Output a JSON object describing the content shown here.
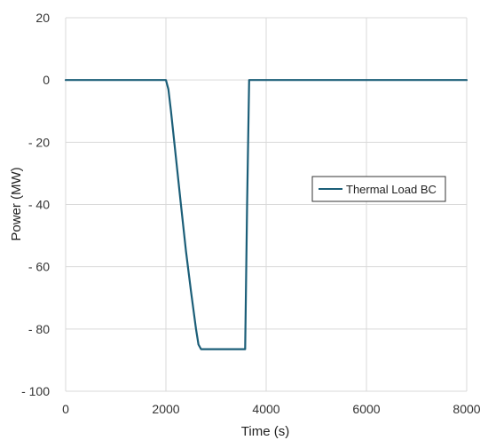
{
  "chart_data": {
    "type": "line",
    "title": "",
    "xlabel": "Time (s)",
    "ylabel": "Power (MW)",
    "xlim": [
      0,
      8000
    ],
    "ylim": [
      -100,
      20
    ],
    "x_ticks": [
      0,
      2000,
      4000,
      6000,
      8000
    ],
    "x_tick_labels": [
      "0",
      "2000",
      "4000",
      "6000",
      "8000"
    ],
    "y_ticks": [
      20,
      0,
      -20,
      -40,
      -60,
      -80,
      -100
    ],
    "y_tick_labels": [
      "20",
      "0",
      "- 20",
      "- 40",
      "- 60",
      "- 80",
      "- 100"
    ],
    "grid": {
      "horizontal": true,
      "vertical": true
    },
    "legend_position": "right-middle",
    "series": [
      {
        "name": "Thermal Load BC",
        "color": "#1b5e78",
        "x": [
          0,
          1950,
          2000,
          2050,
          2100,
          2200,
          2300,
          2400,
          2500,
          2600,
          2650,
          2700,
          2750,
          2800,
          3000,
          3200,
          3400,
          3550,
          3580,
          3620,
          3660,
          3700,
          4000,
          6000,
          8000
        ],
        "y": [
          0,
          0,
          0,
          -3,
          -10,
          -25,
          -40,
          -55,
          -68,
          -80,
          -85,
          -86.5,
          -86.5,
          -86.5,
          -86.5,
          -86.5,
          -86.5,
          -86.5,
          -86.5,
          -40,
          0,
          0,
          0,
          0,
          0
        ]
      }
    ]
  }
}
